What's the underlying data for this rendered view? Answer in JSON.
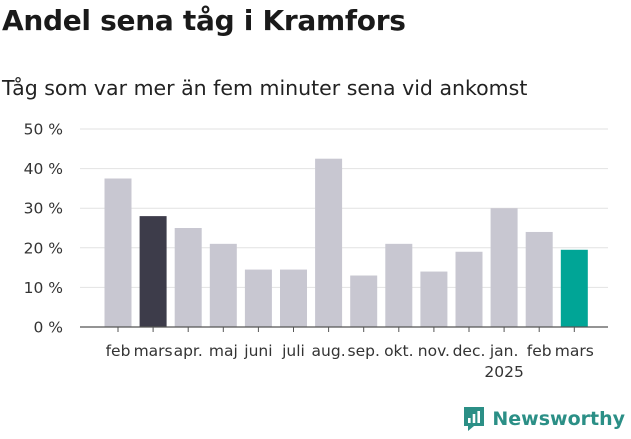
{
  "title": "Andel sena tåg i Kramfors",
  "subtitle": "Tåg som var mer än fem minuter sena vid ankomst",
  "brand": {
    "name": "Newsworthy",
    "icon": "newsworthy-logo-icon"
  },
  "colors": {
    "default_bar": "#c8c7d1",
    "highlight_previous": "#3d3c4a",
    "highlight_current": "#00a596",
    "gridline": "#e2e2e2",
    "axis": "#555555",
    "brand": "#2b8f86"
  },
  "chart_data": {
    "type": "bar",
    "title": "Andel sena tåg i Kramfors",
    "subtitle": "Tåg som var mer än fem minuter sena vid ankomst",
    "xlabel": "",
    "ylabel": "",
    "categories": [
      "feb",
      "mars",
      "apr.",
      "maj",
      "juni",
      "juli",
      "aug.",
      "sep.",
      "okt.",
      "nov.",
      "dec.",
      "jan.",
      "feb",
      "mars"
    ],
    "year_labels": [
      "",
      "",
      "",
      "",
      "",
      "",
      "",
      "",
      "",
      "",
      "",
      "2025",
      "",
      ""
    ],
    "values": [
      37.5,
      28,
      25,
      21,
      14.5,
      14.5,
      42.5,
      13,
      21,
      14,
      19,
      30,
      24,
      19.5
    ],
    "bar_colors": [
      "#c8c7d1",
      "#3d3c4a",
      "#c8c7d1",
      "#c8c7d1",
      "#c8c7d1",
      "#c8c7d1",
      "#c8c7d1",
      "#c8c7d1",
      "#c8c7d1",
      "#c8c7d1",
      "#c8c7d1",
      "#c8c7d1",
      "#c8c7d1",
      "#00a596"
    ],
    "ylim": [
      0,
      50
    ],
    "yticks": [
      0,
      10,
      20,
      30,
      40,
      50
    ],
    "ytick_labels": [
      "0 %",
      "10 %",
      "20 %",
      "30 %",
      "40 %",
      "50 %"
    ],
    "grid": true,
    "legend": "none"
  }
}
